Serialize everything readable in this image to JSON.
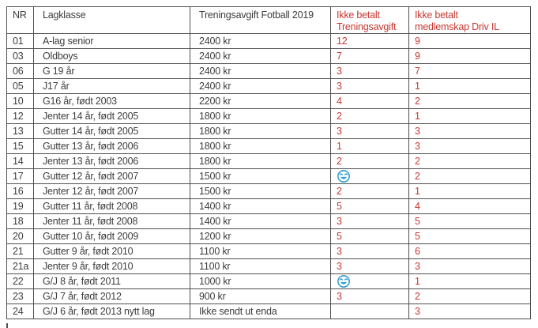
{
  "colors": {
    "alert_red": "#c63831",
    "smiley_blue": "#2f9cc9",
    "border_gray": "#4f4f4f",
    "body_text": "#3d3d3d"
  },
  "table": {
    "headers": [
      {
        "label": "NR"
      },
      {
        "label": "Lagklasse"
      },
      {
        "label": "Treningsavgift Fotball 2019"
      },
      {
        "label": "Ikke betalt\nTreningsavgift"
      },
      {
        "label": "Ikke betalt\nmedlemskap Driv IL"
      }
    ],
    "rows": [
      {
        "nr": "01",
        "lagklasse": "A-lag senior",
        "avgift": "2400 kr",
        "unpaid_training": "12",
        "unpaid_membership": "9"
      },
      {
        "nr": "03",
        "lagklasse": "Oldboys",
        "avgift": "2400 kr",
        "unpaid_training": "7",
        "unpaid_membership": "9"
      },
      {
        "nr": "06",
        "lagklasse": "G 19 år",
        "avgift": "2400 kr",
        "unpaid_training": "3",
        "unpaid_membership": "7"
      },
      {
        "nr": "05",
        "lagklasse": "J17 år",
        "avgift": "2400 kr",
        "unpaid_training": "3",
        "unpaid_membership": "1"
      },
      {
        "nr": "10",
        "lagklasse": "G16 år, født 2003",
        "avgift": "2200 kr",
        "unpaid_training": "4",
        "unpaid_membership": "2"
      },
      {
        "nr": "12",
        "lagklasse": "Jenter 14 år, født 2005",
        "avgift": "1800 kr",
        "unpaid_training": "2",
        "unpaid_membership": "1"
      },
      {
        "nr": "13",
        "lagklasse": "Gutter 14 år, født 2005",
        "avgift": "1800 kr",
        "unpaid_training": "3",
        "unpaid_membership": "3"
      },
      {
        "nr": "15",
        "lagklasse": "Gutter 13 år, født 2006",
        "avgift": "1800 kr",
        "unpaid_training": "1",
        "unpaid_membership": "3"
      },
      {
        "nr": "14",
        "lagklasse": "Jenter 13 år, født 2006",
        "avgift": "1800 kr",
        "unpaid_training": "2",
        "unpaid_membership": "2"
      },
      {
        "nr": "17",
        "lagklasse": "Gutter 12 år, født 2007",
        "avgift": "1500 kr",
        "unpaid_training": {
          "icon": "smiley-face-icon"
        },
        "unpaid_membership": "2"
      },
      {
        "nr": "16",
        "lagklasse": "Jenter 12 år, født 2007",
        "avgift": "1500 kr",
        "unpaid_training": "2",
        "unpaid_membership": "1"
      },
      {
        "nr": "19",
        "lagklasse": "Gutter 11 år, født 2008",
        "avgift": "1400 kr",
        "unpaid_training": "5",
        "unpaid_membership": "4"
      },
      {
        "nr": "18",
        "lagklasse": "Jenter 11 år, født 2008",
        "avgift": "1400 kr",
        "unpaid_training": "3",
        "unpaid_membership": "5"
      },
      {
        "nr": "20",
        "lagklasse": "Gutter 10 år, født 2009",
        "avgift": "1200 kr",
        "unpaid_training": "5",
        "unpaid_membership": "5"
      },
      {
        "nr": "21",
        "lagklasse": "Gutter 9 år, født 2010",
        "avgift": "1100 kr",
        "unpaid_training": "3",
        "unpaid_membership": "6"
      },
      {
        "nr": "21a",
        "lagklasse": "Jenter 9 år, født 2010",
        "avgift": "1100 kr",
        "unpaid_training": "3",
        "unpaid_membership": "3"
      },
      {
        "nr": "22",
        "lagklasse": "G/J 8 år, født 2011",
        "avgift": "1000 kr",
        "unpaid_training": {
          "icon": "smiley-face-icon"
        },
        "unpaid_membership": "1"
      },
      {
        "nr": "23",
        "lagklasse": "G/J 7 år, født 2012",
        "avgift": "900 kr",
        "unpaid_training": "3",
        "unpaid_membership": "2"
      },
      {
        "nr": "24",
        "lagklasse": "G/J 6 år, født 2013 nytt lag",
        "avgift": "Ikke sendt ut enda",
        "unpaid_training": "",
        "unpaid_membership": "3"
      }
    ]
  }
}
